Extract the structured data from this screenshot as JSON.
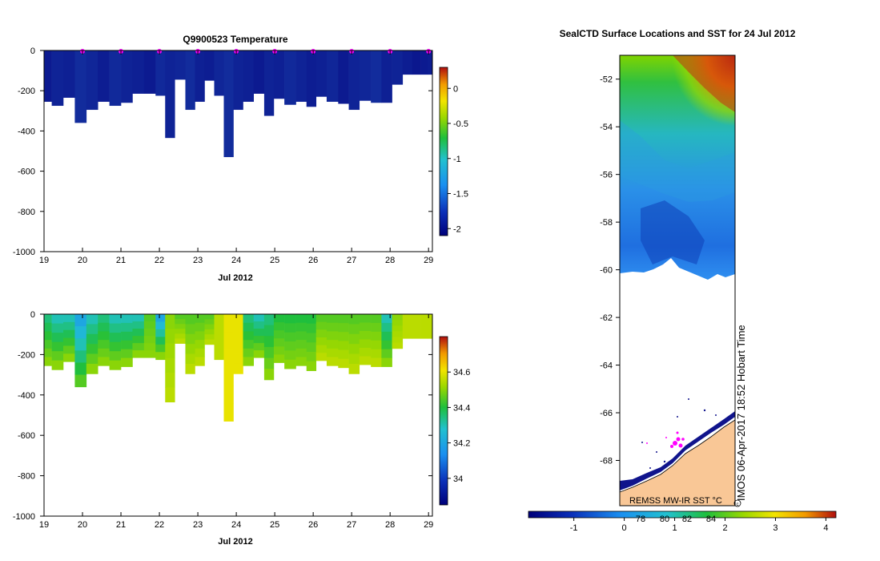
{
  "temperature_panel": {
    "title": "Q9900523  Temperature",
    "xlabel": "Jul 2012",
    "colorbar_ticks": [
      "0",
      "-0.5",
      "-1",
      "-1.5",
      "-2"
    ]
  },
  "salinity_panel": {
    "xlabel": "Jul 2012",
    "colorbar_ticks": [
      "34.6",
      "34.4",
      "34.2",
      "34"
    ]
  },
  "map_panel": {
    "title": "SealCTD Surface Locations and SST for 24 Jul 2012",
    "lat_ticks": [
      "-52",
      "-54",
      "-56",
      "-58",
      "-60",
      "-62",
      "-64",
      "-66",
      "-68"
    ],
    "colorbar_ticks": [
      "-1",
      "0",
      "1",
      "2",
      "3",
      "4"
    ],
    "colorbar_overlap_ticks": [
      "78",
      "80",
      "82",
      "84"
    ],
    "source_label": "REMSS MW-IR SST °C",
    "credit": "IMOS 06-Apr-2017 18:52 Hobart Time"
  },
  "colors": {
    "land": "#f9c796",
    "marker": "#ff00ff",
    "deep_blue": "#10148c"
  },
  "chart_data": [
    {
      "type": "heatmap",
      "title": "Q9900523  Temperature",
      "xlabel": "Jul 2012",
      "ylabel": "",
      "xlim": [
        19,
        29.1
      ],
      "ylim": [
        -1000,
        0
      ],
      "x_ticks": [
        "19",
        "20",
        "21",
        "22",
        "23",
        "24",
        "25",
        "26",
        "27",
        "28",
        "29"
      ],
      "y_ticks": [
        "0",
        "-200",
        "-400",
        "-600",
        "-800",
        "-1000"
      ],
      "profile_times": [
        19.05,
        19.35,
        19.65,
        19.95,
        20.25,
        20.55,
        20.85,
        21.15,
        21.45,
        21.75,
        22.05,
        22.25,
        22.55,
        22.8,
        23.05,
        23.3,
        23.55,
        23.8,
        24.05,
        24.3,
        24.6,
        24.85,
        25.1,
        25.4,
        25.7,
        25.95,
        26.2,
        26.5,
        26.8,
        27.05,
        27.35,
        27.65,
        27.9,
        28.2,
        28.45,
        28.7,
        28.9,
        29.05
      ],
      "profile_max_depths": [
        -255,
        -275,
        -235,
        -360,
        -295,
        -255,
        -275,
        -260,
        -215,
        -215,
        -225,
        -435,
        -145,
        -295,
        -255,
        -150,
        -225,
        -530,
        -295,
        -255,
        -215,
        -325,
        -240,
        -270,
        -255,
        -280,
        -230,
        -255,
        -265,
        -295,
        -250,
        -260,
        -260,
        -170,
        -120,
        -120,
        -120,
        -120
      ],
      "profile_color_index": [
        2,
        5,
        4,
        8,
        6,
        3,
        7,
        5,
        4,
        2,
        7,
        5,
        6,
        8,
        4,
        3,
        6,
        8,
        5,
        4,
        2,
        5,
        4,
        7,
        5,
        3,
        4,
        6,
        2,
        5,
        6,
        8,
        4,
        5,
        3,
        1,
        2,
        3
      ],
      "surface_markers_x": [
        20,
        21,
        22,
        23,
        24,
        25,
        26,
        27,
        28,
        29
      ],
      "colorbar": {
        "min": -2.1,
        "max": 0.3,
        "ticks": [
          0,
          -0.5,
          -1,
          -1.5,
          -2
        ]
      }
    },
    {
      "type": "heatmap",
      "title": "",
      "xlabel": "Jul 2012",
      "ylabel": "",
      "xlim": [
        19,
        29.1
      ],
      "ylim": [
        -1000,
        0
      ],
      "x_ticks": [
        "19",
        "20",
        "21",
        "22",
        "23",
        "24",
        "25",
        "26",
        "27",
        "28",
        "29"
      ],
      "y_ticks": [
        "0",
        "-200",
        "-400",
        "-600",
        "-800",
        "-1000"
      ],
      "profile_times": [
        19.05,
        19.35,
        19.65,
        19.95,
        20.25,
        20.55,
        20.85,
        21.15,
        21.45,
        21.75,
        22.05,
        22.25,
        22.55,
        22.8,
        23.05,
        23.3,
        23.55,
        23.8,
        24.05,
        24.3,
        24.6,
        24.85,
        25.1,
        25.4,
        25.7,
        25.95,
        26.2,
        26.5,
        26.8,
        27.05,
        27.35,
        27.65,
        27.9,
        28.2,
        28.45,
        28.7,
        28.9,
        29.05
      ],
      "profile_max_depths": [
        -255,
        -275,
        -235,
        -360,
        -295,
        -255,
        -275,
        -260,
        -215,
        -215,
        -225,
        -435,
        -145,
        -295,
        -255,
        -150,
        -225,
        -530,
        -295,
        -255,
        -215,
        -325,
        -240,
        -270,
        -255,
        -280,
        -230,
        -255,
        -265,
        -295,
        -250,
        -260,
        -260,
        -170,
        -120,
        -120,
        -120,
        -120
      ],
      "surface_salinity": [
        34.35,
        34.3,
        34.3,
        34.2,
        34.3,
        34.35,
        34.3,
        34.3,
        34.3,
        34.45,
        34.2,
        34.5,
        34.45,
        34.45,
        34.45,
        34.45,
        34.55,
        34.6,
        34.6,
        34.35,
        34.3,
        34.35,
        34.4,
        34.4,
        34.4,
        34.4,
        34.45,
        34.45,
        34.45,
        34.45,
        34.45,
        34.45,
        34.3,
        34.5,
        34.55,
        34.55,
        34.55,
        34.55
      ],
      "deep_salinity": [
        34.5,
        34.5,
        34.5,
        34.45,
        34.5,
        34.5,
        34.5,
        34.5,
        34.5,
        34.5,
        34.5,
        34.55,
        34.55,
        34.55,
        34.55,
        34.55,
        34.55,
        34.6,
        34.6,
        34.5,
        34.5,
        34.5,
        34.5,
        34.5,
        34.5,
        34.5,
        34.55,
        34.55,
        34.55,
        34.55,
        34.55,
        34.55,
        34.5,
        34.55,
        34.55,
        34.55,
        34.55,
        34.55
      ],
      "colorbar": {
        "min": 33.85,
        "max": 34.8,
        "ticks": [
          34.6,
          34.4,
          34.2,
          34
        ]
      }
    },
    {
      "type": "heatmap",
      "title": "SealCTD Surface Locations and SST for 24 Jul 2012",
      "xlabel": "",
      "ylabel": "",
      "ylim": [
        -69.9,
        -51
      ],
      "y_ticks": [
        "-52",
        "-54",
        "-56",
        "-58",
        "-60",
        "-62",
        "-64",
        "-66",
        "-68"
      ],
      "ice_edge_lat": -60.1,
      "sst_north": 2.4,
      "sst_mid": 0.9,
      "sst_south": -0.6,
      "colorbar": {
        "min": -1.9,
        "max": 4.2,
        "ticks": [
          -1,
          0,
          1,
          2,
          3,
          4
        ]
      }
    }
  ]
}
